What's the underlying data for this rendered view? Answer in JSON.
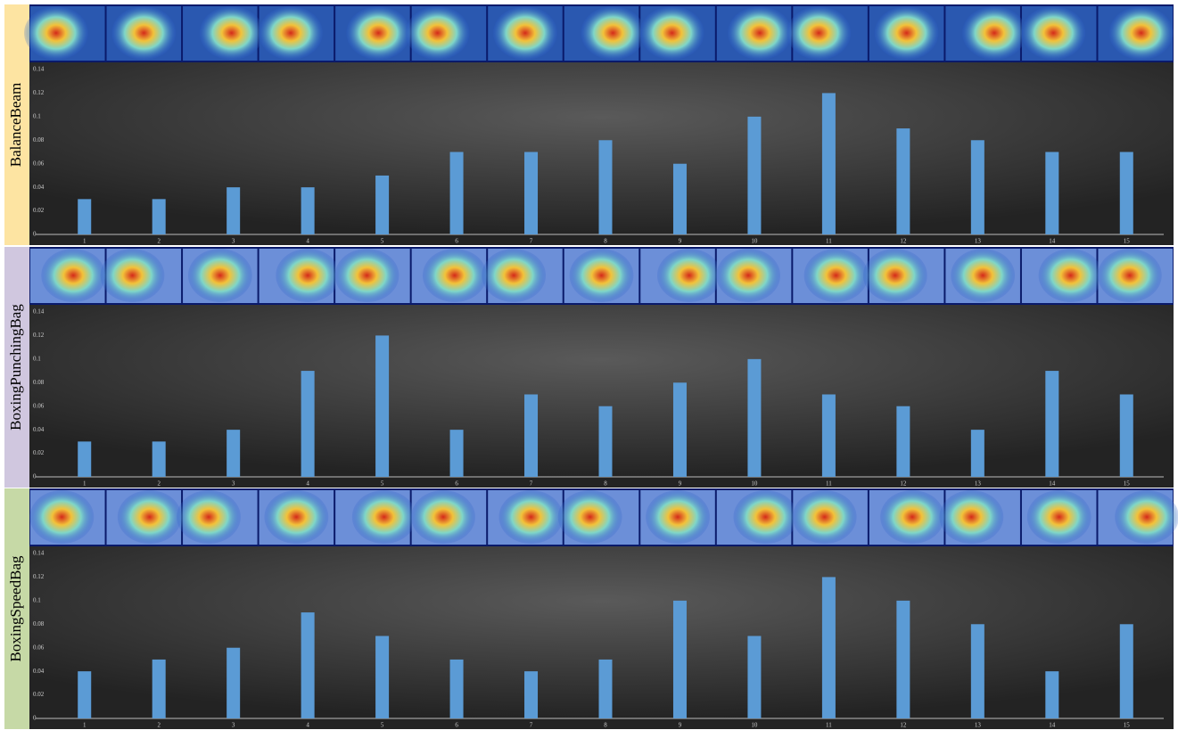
{
  "chart_data": [
    {
      "type": "bar",
      "title": "BalanceBeam",
      "categories": [
        "1",
        "2",
        "3",
        "4",
        "5",
        "6",
        "7",
        "8",
        "9",
        "10",
        "11",
        "12",
        "13",
        "14",
        "15"
      ],
      "values": [
        0.03,
        0.03,
        0.04,
        0.04,
        0.05,
        0.07,
        0.07,
        0.08,
        0.06,
        0.1,
        0.12,
        0.09,
        0.08,
        0.07,
        0.07
      ],
      "color": "#5b9bd5",
      "ylim": [
        0,
        0.14
      ],
      "yticks": [
        0,
        0.02,
        0.04,
        0.06,
        0.08,
        0.1,
        0.12,
        0.14
      ]
    },
    {
      "type": "bar",
      "title": "BoxingPunchingBag",
      "categories": [
        "1",
        "2",
        "3",
        "4",
        "5",
        "6",
        "7",
        "8",
        "9",
        "10",
        "11",
        "12",
        "13",
        "14",
        "15"
      ],
      "values": [
        0.03,
        0.03,
        0.04,
        0.09,
        0.12,
        0.04,
        0.07,
        0.06,
        0.08,
        0.1,
        0.07,
        0.06,
        0.04,
        0.09,
        0.07
      ],
      "color": "#5b9bd5",
      "ylim": [
        0,
        0.14
      ],
      "yticks": [
        0,
        0.02,
        0.04,
        0.06,
        0.08,
        0.1,
        0.12,
        0.14
      ]
    },
    {
      "type": "bar",
      "title": "BoxingSpeedBag",
      "categories": [
        "1",
        "2",
        "3",
        "4",
        "5",
        "6",
        "7",
        "8",
        "9",
        "10",
        "11",
        "12",
        "13",
        "14",
        "15"
      ],
      "values": [
        0.04,
        0.05,
        0.06,
        0.09,
        0.07,
        0.05,
        0.04,
        0.05,
        0.1,
        0.07,
        0.12,
        0.1,
        0.08,
        0.04,
        0.08
      ],
      "color": "#5b9bd5",
      "ylim": [
        0,
        0.14
      ],
      "yticks": [
        0,
        0.02,
        0.04,
        0.06,
        0.08,
        0.1,
        0.12,
        0.14
      ]
    }
  ]
}
